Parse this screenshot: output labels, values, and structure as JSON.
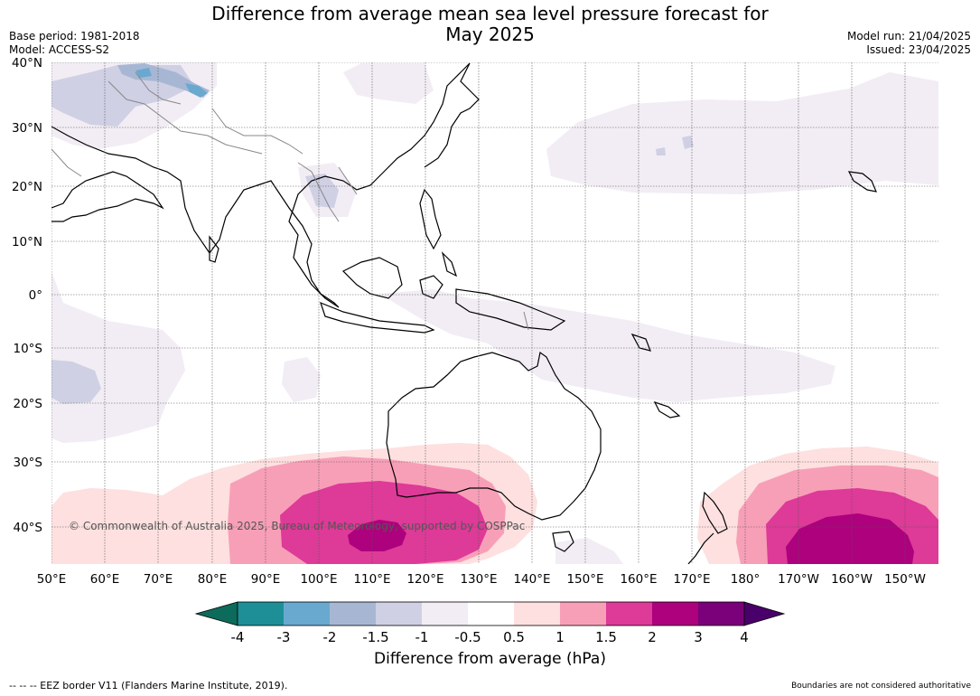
{
  "title_line1": "Difference from average mean sea level pressure forecast for",
  "title_line2": "May 2025",
  "meta_left": {
    "base_period": "Base period: 1981-2018",
    "model": "Model: ACCESS-S2"
  },
  "meta_right": {
    "model_run": "Model run: 21/04/2025",
    "issued": "Issued: 23/04/2025"
  },
  "lat_labels": [
    "40°N",
    "30°N",
    "20°N",
    "10°N",
    "0°",
    "10°S",
    "20°S",
    "30°S",
    "40°S"
  ],
  "lon_labels": [
    "50°E",
    "60°E",
    "70°E",
    "80°E",
    "90°E",
    "100°E",
    "110°E",
    "120°E",
    "130°E",
    "140°E",
    "150°E",
    "160°E",
    "170°E",
    "180°",
    "170°W",
    "160°W",
    "150°W"
  ],
  "copyright": "© Commonwealth of Australia 2025, Bureau of Meteorology, supported by COSPPac",
  "colorbar": {
    "title": "Difference from average (hPa)",
    "tick_labels": [
      "-4",
      "-3",
      "-2",
      "-1.5",
      "-1",
      "-0.5",
      "0.5",
      "1",
      "1.5",
      "2",
      "3",
      "4"
    ],
    "colors": {
      "below_min": "#0d6b5b",
      "bins": [
        "#1e8f96",
        "#69a9d0",
        "#a7b7d3",
        "#cfd0e4",
        "#f2edf4",
        "#ffffff",
        "#fde0df",
        "#f89fb8",
        "#de3a98",
        "#ad017d",
        "#7a0179"
      ],
      "above_max": "#49006a"
    }
  },
  "footer_left": "--  --  -- EEZ border V11 (Flanders Marine Institute, 2019).",
  "footer_right": "Boundaries are not considered authoritative"
}
